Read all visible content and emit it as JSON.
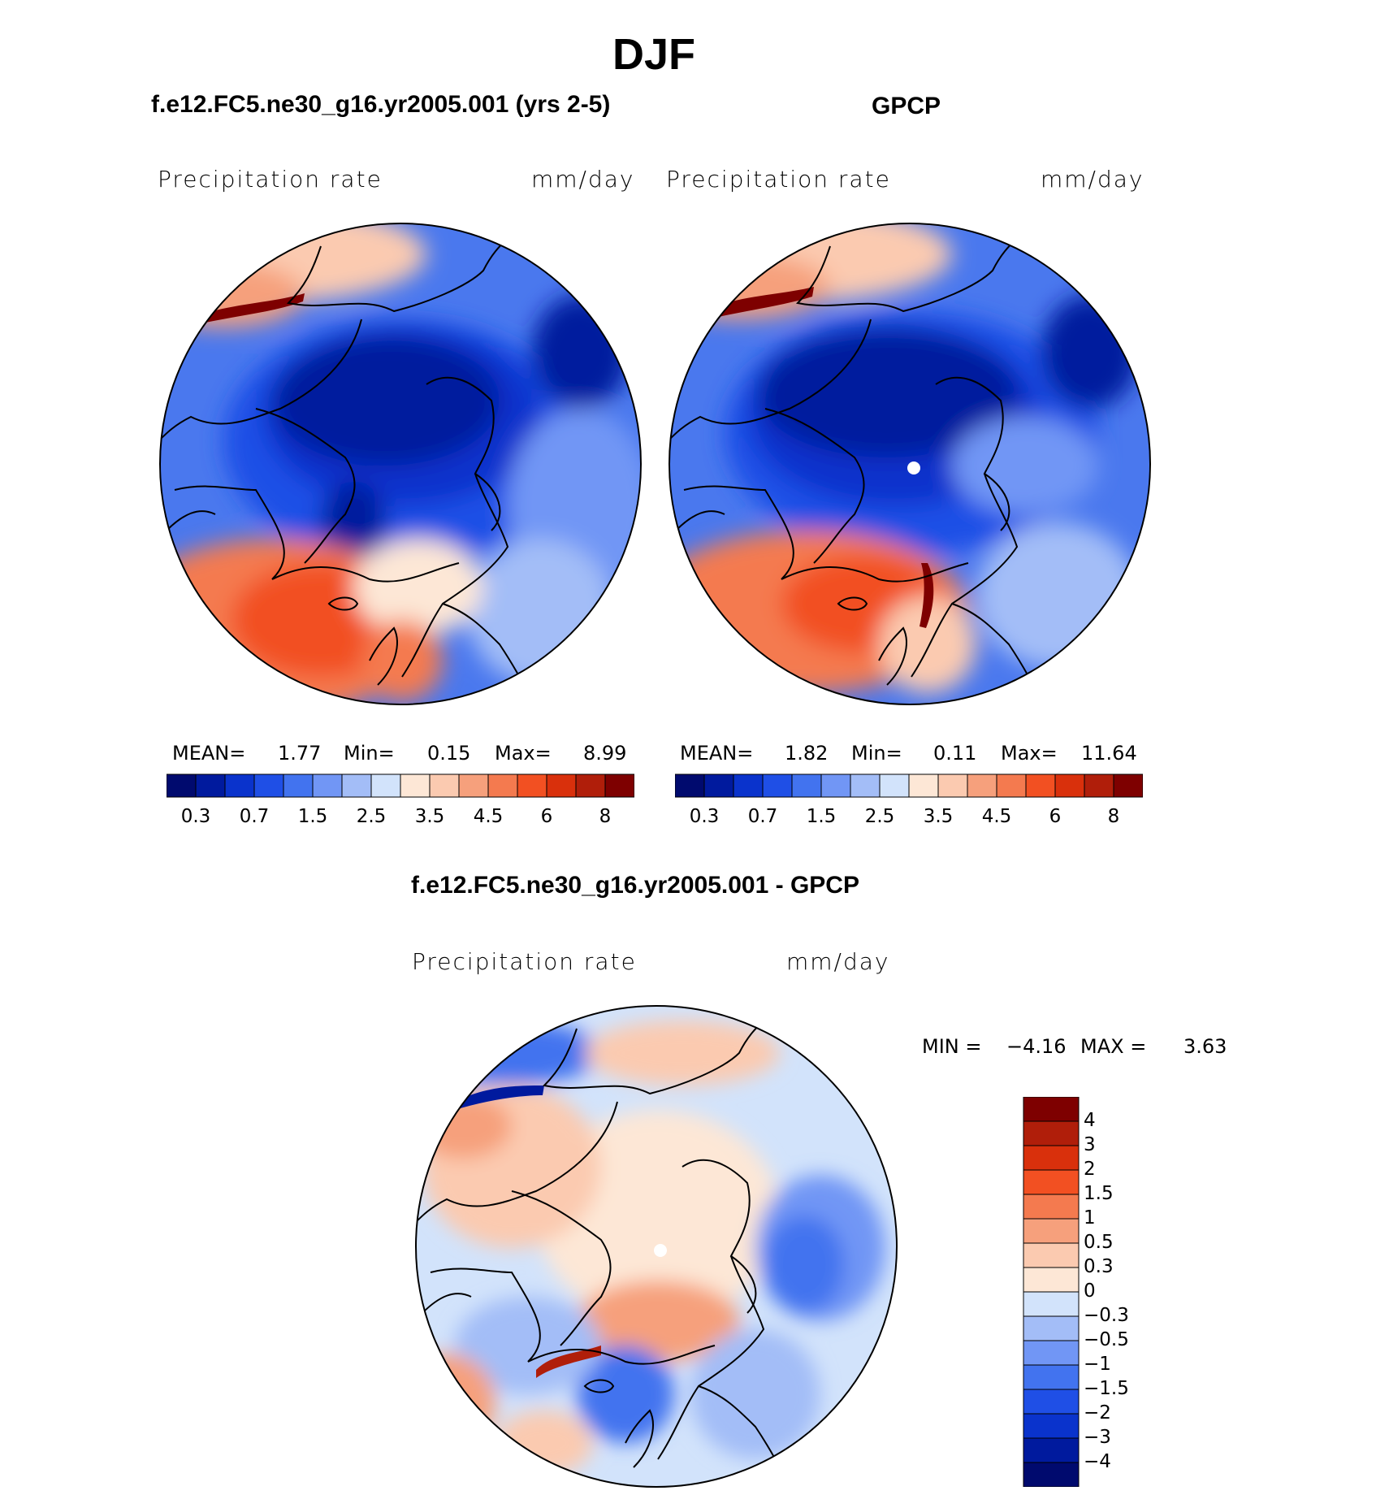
{
  "figure": {
    "title": "DJF",
    "panels": [
      {
        "title": "f.e12.FC5.ne30_g16.yr2005.001 (yrs 2-5)",
        "variable_label": "Precipitation rate",
        "units_label": "mm/day",
        "stats": {
          "mean_label": "MEAN=",
          "mean": "1.77",
          "min_label": "Min=",
          "min": "0.15",
          "max_label": "Max=",
          "max": "8.99"
        },
        "colorbar_ticks": [
          "0.3",
          "0.7",
          "1.5",
          "2.5",
          "3.5",
          "4.5",
          "6",
          "8"
        ]
      },
      {
        "title": "GPCP",
        "variable_label": "Precipitation rate",
        "units_label": "mm/day",
        "stats": {
          "mean_label": "MEAN=",
          "mean": "1.82",
          "min_label": "Min=",
          "min": "0.11",
          "max_label": "Max=",
          "max": "11.64"
        },
        "colorbar_ticks": [
          "0.3",
          "0.7",
          "1.5",
          "2.5",
          "3.5",
          "4.5",
          "6",
          "8"
        ]
      }
    ],
    "difference": {
      "title": "f.e12.FC5.ne30_g16.yr2005.001 - GPCP",
      "variable_label": "Precipitation rate",
      "units_label": "mm/day",
      "stats": {
        "min_label": "MIN =",
        "min": "−4.16",
        "max_label": "MAX =",
        "max": "3.63"
      },
      "colorbar_ticks": [
        "4",
        "3",
        "2",
        "1.5",
        "1",
        "0.5",
        "0.3",
        "0",
        "−0.3",
        "−0.5",
        "−1",
        "−1.5",
        "−2",
        "−3",
        "−4"
      ]
    }
  },
  "colors": {
    "abs_scale": [
      "#000a6e",
      "#001a9e",
      "#0a33cc",
      "#1f4fe6",
      "#4273ef",
      "#7196f5",
      "#a3bdf7",
      "#d2e3fb",
      "#fde7d6",
      "#fbcab0",
      "#f6a07c",
      "#f47a4f",
      "#f25022",
      "#d9300c",
      "#b01e0a",
      "#7e0000"
    ],
    "diff_scale": [
      "#7e0000",
      "#b01e0a",
      "#d9300c",
      "#f25022",
      "#f47a4f",
      "#f6a07c",
      "#fbcab0",
      "#fde7d6",
      "#d2e3fb",
      "#a3bdf7",
      "#7196f5",
      "#4273ef",
      "#1f4fe6",
      "#0a33cc",
      "#001a9e",
      "#000a6e"
    ]
  }
}
